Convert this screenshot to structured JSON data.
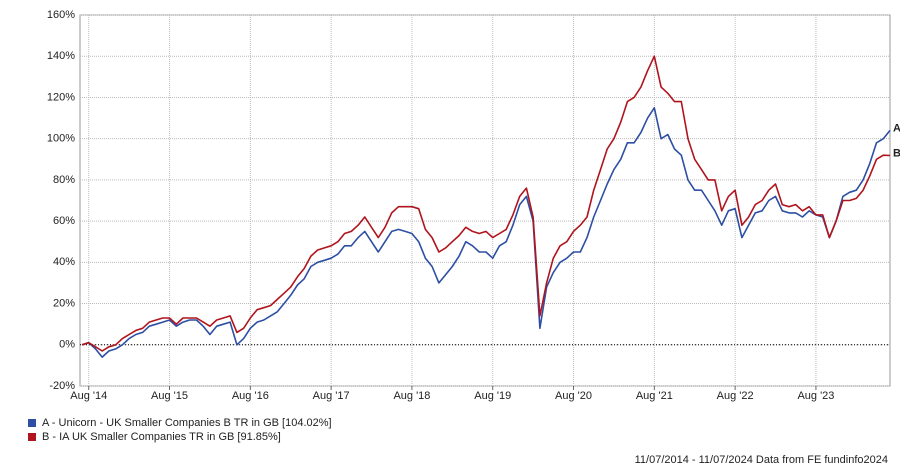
{
  "chart_data": {
    "type": "line",
    "categories": [
      null,
      "Aug '14",
      null,
      null,
      null,
      null,
      null,
      null,
      null,
      null,
      null,
      null,
      null,
      "Aug '15",
      null,
      null,
      null,
      null,
      null,
      null,
      null,
      null,
      null,
      null,
      null,
      "Aug '16",
      null,
      null,
      null,
      null,
      null,
      null,
      null,
      null,
      null,
      null,
      null,
      "Aug '17",
      null,
      null,
      null,
      null,
      null,
      null,
      null,
      null,
      null,
      null,
      null,
      "Aug '18",
      null,
      null,
      null,
      null,
      null,
      null,
      null,
      null,
      null,
      null,
      null,
      "Aug '19",
      null,
      null,
      null,
      null,
      null,
      null,
      null,
      null,
      null,
      null,
      null,
      "Aug '20",
      null,
      null,
      null,
      null,
      null,
      null,
      null,
      null,
      null,
      null,
      null,
      "Aug '21",
      null,
      null,
      null,
      null,
      null,
      null,
      null,
      null,
      null,
      null,
      null,
      "Aug '22",
      null,
      null,
      null,
      null,
      null,
      null,
      null,
      null,
      null,
      null,
      null,
      "Aug '23",
      null,
      null,
      null,
      null,
      null,
      null,
      null,
      null,
      null,
      null,
      null
    ],
    "series": [
      {
        "name": "A - Unicorn - UK Smaller Companies B TR in GB [104.02%]",
        "label": "A",
        "color": "#2d4fa3",
        "values": [
          0,
          1,
          -2,
          -6,
          -3,
          -2,
          0,
          3,
          5,
          6,
          9,
          10,
          11,
          12,
          9,
          11,
          12,
          12,
          9,
          5,
          9,
          10,
          11,
          0,
          3,
          8,
          11,
          12,
          14,
          16,
          20,
          24,
          29,
          32,
          38,
          40,
          41,
          42,
          44,
          48,
          48,
          52,
          55,
          50,
          45,
          50,
          55,
          56,
          55,
          54,
          50,
          42,
          38,
          30,
          34,
          38,
          43,
          50,
          48,
          45,
          45,
          42,
          48,
          50,
          58,
          68,
          72,
          60,
          8,
          28,
          35,
          40,
          42,
          45,
          45,
          52,
          62,
          70,
          78,
          85,
          90,
          98,
          98,
          103,
          110,
          115,
          100,
          102,
          95,
          92,
          80,
          75,
          75,
          70,
          65,
          58,
          65,
          66,
          52,
          58,
          64,
          65,
          70,
          72,
          65,
          64,
          64,
          62,
          65,
          63,
          62,
          52,
          60,
          72,
          74,
          75,
          80,
          88,
          98,
          100,
          104.02
        ]
      },
      {
        "name": "B - IA UK Smaller Companies TR in GB [91.85%]",
        "label": "B",
        "color": "#b0141c",
        "values": [
          0,
          1,
          -1,
          -3,
          -1,
          0,
          3,
          5,
          7,
          8,
          11,
          12,
          13,
          13,
          10,
          13,
          13,
          13,
          11,
          9,
          12,
          13,
          14,
          6,
          8,
          13,
          17,
          18,
          19,
          22,
          25,
          28,
          33,
          37,
          43,
          46,
          47,
          48,
          50,
          54,
          55,
          58,
          62,
          57,
          52,
          57,
          64,
          67,
          67,
          67,
          66,
          56,
          52,
          45,
          47,
          50,
          53,
          57,
          55,
          54,
          55,
          52,
          54,
          56,
          63,
          72,
          76,
          62,
          14,
          30,
          42,
          48,
          50,
          55,
          58,
          62,
          75,
          85,
          95,
          100,
          108,
          118,
          120,
          125,
          133,
          140,
          125,
          122,
          118,
          118,
          100,
          90,
          85,
          80,
          80,
          65,
          72,
          75,
          58,
          62,
          68,
          70,
          75,
          78,
          68,
          67,
          68,
          65,
          67,
          63,
          63,
          52,
          60,
          70,
          70,
          71,
          75,
          82,
          90,
          92,
          91.85
        ]
      }
    ],
    "ylim": [
      -20,
      160
    ],
    "yticks": [
      {
        "value": -20,
        "label": "-20%"
      },
      {
        "value": 0,
        "label": "0%"
      },
      {
        "value": 20,
        "label": "20%"
      },
      {
        "value": 40,
        "label": "40%"
      },
      {
        "value": 60,
        "label": "60%"
      },
      {
        "value": 80,
        "label": "80%"
      },
      {
        "value": 100,
        "label": "100%"
      },
      {
        "value": 120,
        "label": "120%"
      },
      {
        "value": 140,
        "label": "140%"
      },
      {
        "value": 160,
        "label": "160%"
      }
    ],
    "grid": true,
    "footer": "11/07/2014 - 11/07/2024 Data from FE fundinfo2024"
  }
}
